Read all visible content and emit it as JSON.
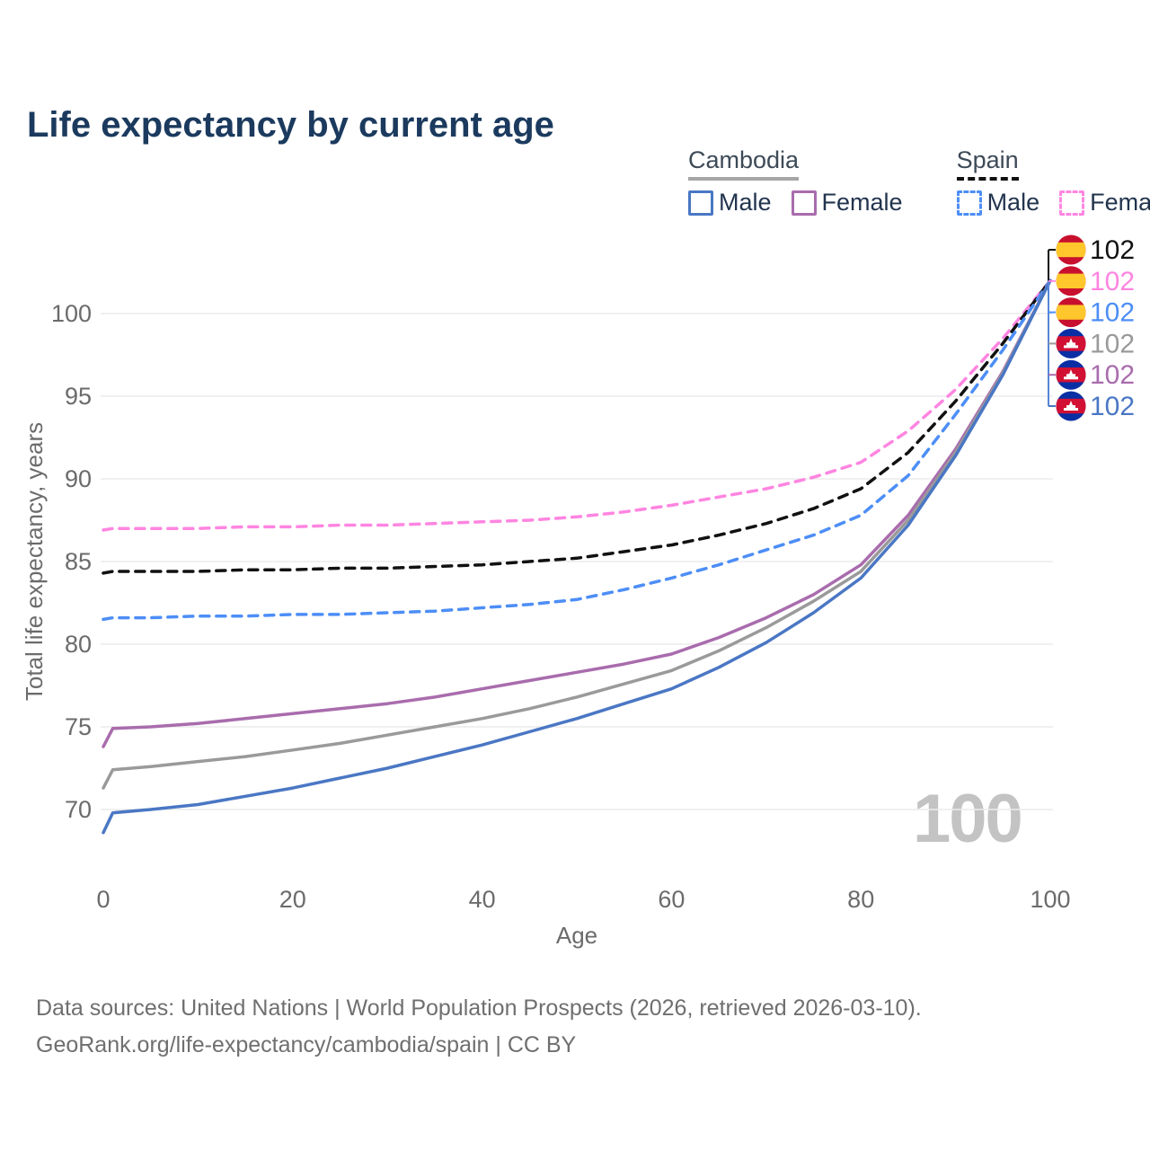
{
  "title": "Life expectancy by current age",
  "watermark": "100",
  "legend": {
    "groups": [
      {
        "label": "Cambodia",
        "line_style": "solid",
        "underline_color": "#a6a6a6",
        "items": [
          {
            "label": "Male",
            "color": "#4a77c4",
            "dashed": false
          },
          {
            "label": "Female",
            "color": "#a96cad",
            "dashed": false
          }
        ]
      },
      {
        "label": "Spain",
        "line_style": "dashed",
        "underline_color": "#111111",
        "items": [
          {
            "label": "Male",
            "color": "#4d8ef7",
            "dashed": true
          },
          {
            "label": "Female",
            "color": "#ff85e1",
            "dashed": true
          }
        ]
      }
    ]
  },
  "footer": {
    "line1": "Data sources: United Nations | World Population Prospects (2026, retrieved 2026-03-10).",
    "line2": "GeoRank.org/life-expectancy/cambodia/spain | CC BY"
  },
  "chart_data": {
    "type": "line",
    "title": "Life expectancy by current age",
    "xlabel": "Age",
    "ylabel": "Total life expectancy, years",
    "xlim": [
      0,
      100
    ],
    "ylim": [
      67.5,
      103
    ],
    "xticks": [
      0,
      20,
      40,
      60,
      80,
      100
    ],
    "yticks": [
      70,
      75,
      80,
      85,
      90,
      95,
      100
    ],
    "grid": true,
    "legend_position": "top-right",
    "ages": [
      0,
      1,
      5,
      10,
      15,
      20,
      25,
      30,
      35,
      40,
      45,
      50,
      55,
      60,
      65,
      70,
      75,
      80,
      85,
      90,
      95,
      100
    ],
    "series": [
      {
        "name": "Spain Female",
        "country": "Spain",
        "sex": "Female",
        "color": "#ff85e1",
        "dashed": true,
        "values": [
          86.9,
          87.0,
          87.0,
          87.0,
          87.1,
          87.1,
          87.2,
          87.2,
          87.3,
          87.4,
          87.5,
          87.7,
          88.0,
          88.4,
          88.9,
          89.4,
          90.1,
          91.0,
          92.9,
          95.4,
          98.5,
          102
        ]
      },
      {
        "name": "Spain Total",
        "country": "Spain",
        "sex": "All",
        "color": "#111111",
        "dashed": true,
        "values": [
          84.3,
          84.4,
          84.4,
          84.4,
          84.5,
          84.5,
          84.6,
          84.6,
          84.7,
          84.8,
          85.0,
          85.2,
          85.6,
          86.0,
          86.6,
          87.3,
          88.2,
          89.4,
          91.6,
          94.7,
          98.2,
          102
        ]
      },
      {
        "name": "Spain Male",
        "country": "Spain",
        "sex": "Male",
        "color": "#4d8ef7",
        "dashed": true,
        "values": [
          81.5,
          81.6,
          81.6,
          81.7,
          81.7,
          81.8,
          81.8,
          81.9,
          82.0,
          82.2,
          82.4,
          82.7,
          83.3,
          84.0,
          84.8,
          85.7,
          86.6,
          87.8,
          90.2,
          93.9,
          97.8,
          102
        ]
      },
      {
        "name": "Cambodia Female",
        "country": "Cambodia",
        "sex": "Female",
        "color": "#a96cad",
        "dashed": false,
        "values": [
          73.8,
          74.9,
          75.0,
          75.2,
          75.5,
          75.8,
          76.1,
          76.4,
          76.8,
          77.3,
          77.8,
          78.3,
          78.8,
          79.4,
          80.4,
          81.6,
          83.0,
          84.8,
          87.8,
          91.8,
          96.5,
          102
        ]
      },
      {
        "name": "Cambodia Total",
        "country": "Cambodia",
        "sex": "All",
        "color": "#9a9a9a",
        "dashed": false,
        "values": [
          71.3,
          72.4,
          72.6,
          72.9,
          73.2,
          73.6,
          74.0,
          74.5,
          75.0,
          75.5,
          76.1,
          76.8,
          77.6,
          78.4,
          79.6,
          81.0,
          82.6,
          84.4,
          87.5,
          91.6,
          96.4,
          102
        ]
      },
      {
        "name": "Cambodia Male",
        "country": "Cambodia",
        "sex": "Male",
        "color": "#4a77c4",
        "dashed": false,
        "values": [
          68.6,
          69.8,
          70.0,
          70.3,
          70.8,
          71.3,
          71.9,
          72.5,
          73.2,
          73.9,
          74.7,
          75.5,
          76.4,
          77.3,
          78.6,
          80.1,
          81.9,
          84.0,
          87.2,
          91.4,
          96.3,
          102
        ]
      }
    ],
    "end_labels": [
      {
        "value": "102",
        "flag": "spain",
        "series": "Spain Total",
        "color": "#111111"
      },
      {
        "value": "102",
        "flag": "spain",
        "series": "Spain Female",
        "color": "#ff85e1"
      },
      {
        "value": "102",
        "flag": "spain",
        "series": "Spain Male",
        "color": "#4d8ef7"
      },
      {
        "value": "102",
        "flag": "cambodia",
        "series": "Cambodia Total",
        "color": "#9a9a9a"
      },
      {
        "value": "102",
        "flag": "cambodia",
        "series": "Cambodia Female",
        "color": "#a96cad"
      },
      {
        "value": "102",
        "flag": "cambodia",
        "series": "Cambodia Male",
        "color": "#4a77c4"
      }
    ]
  }
}
